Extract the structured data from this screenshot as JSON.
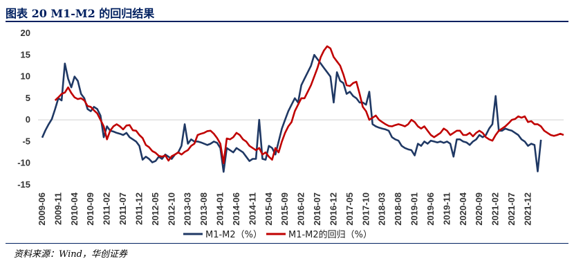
{
  "figure": {
    "title": "图表 20   M1-M2 的回归结果",
    "source": "资料来源：Wind，华创证券"
  },
  "chart_data": {
    "type": "line",
    "title": "",
    "xlabel": "",
    "ylabel": "",
    "ylim": [
      -15,
      20
    ],
    "yticks": [
      20,
      15,
      10,
      5,
      0,
      -5,
      -10,
      -15
    ],
    "grid": false,
    "legend_position": "bottom",
    "x_ticks": [
      "2009-06",
      "2009-11",
      "2010-04",
      "2010-09",
      "2011-02",
      "2011-07",
      "2011-12",
      "2012-05",
      "2012-10",
      "2013-03",
      "2013-08",
      "2014-01",
      "2014-06",
      "2014-11",
      "2015-04",
      "2015-09",
      "2016-02",
      "2016-07",
      "2016-12",
      "2017-05",
      "2017-10",
      "2018-03",
      "2018-08",
      "2019-01",
      "2019-06",
      "2019-11",
      "2020-04",
      "2020-09",
      "2021-02",
      "2021-07",
      "2021-12"
    ],
    "x_start": "2009-06",
    "series": [
      {
        "name": "M1-M2（%）",
        "color": "#1F3864",
        "start": "2009-06",
        "values": [
          -4.1,
          -2.4,
          -1.0,
          0.2,
          2.5,
          5.0,
          4.5,
          13.0,
          9.5,
          7.5,
          10.0,
          9.0,
          6.0,
          5.0,
          2.5,
          2.0,
          3.0,
          2.5,
          1.0,
          -4.0,
          -1.5,
          -2.5,
          -2.7,
          -3.0,
          -3.2,
          -3.5,
          -3.0,
          -4.0,
          -4.5,
          -5.0,
          -6.0,
          -9.2,
          -8.5,
          -9.0,
          -9.8,
          -9.5,
          -8.5,
          -9.0,
          -8.0,
          -8.5,
          -9.0,
          -8.0,
          -7.5,
          -6.0,
          -1.0,
          -5.5,
          -4.5,
          -5.0,
          -5.0,
          -5.2,
          -5.5,
          -5.8,
          -5.5,
          -5.0,
          -5.3,
          -6.5,
          -12.0,
          -6.5,
          -7.0,
          -7.5,
          -6.5,
          -7.0,
          -7.5,
          -8.5,
          -9.5,
          -9.0,
          -9.0,
          0.0,
          -9.0,
          -9.2,
          -6.0,
          -6.5,
          -8.0,
          -5.0,
          -2.0,
          0.0,
          2.0,
          3.5,
          5.0,
          4.0,
          8.0,
          9.5,
          11.0,
          12.5,
          15.0,
          14.0,
          13.0,
          12.0,
          11.0,
          10.0,
          4.0,
          11.0,
          9.0,
          8.5,
          6.0,
          6.5,
          5.5,
          5.0,
          4.0,
          4.0,
          3.5,
          6.5,
          -1.0,
          -1.5,
          -1.8,
          -2.0,
          -2.2,
          -2.5,
          -4.0,
          -4.5,
          -4.8,
          -6.0,
          -6.5,
          -6.8,
          -7.0,
          -8.2,
          -5.5,
          -6.0,
          -5.0,
          -5.5,
          -4.8,
          -5.0,
          -5.2,
          -5.0,
          -5.3,
          -5.0,
          -5.5,
          -8.5,
          -4.5,
          -4.5,
          -5.0,
          -5.2,
          -5.8,
          -5.0,
          -4.5,
          -3.5,
          -4.0,
          -3.5,
          -2.0,
          -1.0,
          5.5,
          -2.5,
          -2.5,
          -2.0,
          -2.3,
          -2.5,
          -3.0,
          -3.5,
          -4.5,
          -5.0,
          -6.0,
          -5.5,
          -5.8,
          -11.9,
          -4.6
        ]
      },
      {
        "name": "M1-M2的回归（%）",
        "color": "#C00000",
        "start": "2009-10",
        "values": [
          4.5,
          5.2,
          6.0,
          6.3,
          7.5,
          6.2,
          5.2,
          4.8,
          5.0,
          4.5,
          3.2,
          3.0,
          2.2,
          1.5,
          0.0,
          -1.5,
          -4.5,
          -2.5,
          -1.5,
          -1.0,
          -1.5,
          -2.2,
          -1.3,
          -1.2,
          -2.4,
          -2.5,
          -3.5,
          -4.2,
          -5.8,
          -6.3,
          -7.2,
          -7.6,
          -8.3,
          -8.5,
          -8.2,
          -9.4,
          -8.4,
          -8.0,
          -7.5,
          -8.0,
          -7.4,
          -7.0,
          -6.0,
          -5.5,
          -3.5,
          -3.2,
          -3.0,
          -2.6,
          -2.5,
          -3.2,
          -4.2,
          -5.5,
          -10.0,
          -4.3,
          -4.5,
          -4.0,
          -3.0,
          -3.5,
          -4.5,
          -5.0,
          -6.0,
          -6.5,
          -7.0,
          -6.5,
          -8.0,
          -7.5,
          -8.5,
          -9.2,
          -6.5,
          -7.5,
          -5.0,
          -3.0,
          -1.5,
          -0.5,
          2.0,
          3.5,
          5.0,
          5.0,
          6.5,
          8.0,
          10.0,
          12.0,
          14.5,
          16.0,
          17.0,
          16.5,
          14.5,
          13.5,
          12.5,
          10.5,
          8.0,
          7.8,
          8.5,
          8.8,
          6.0,
          3.0,
          2.0,
          0.0,
          0.5,
          1.0,
          0.0,
          -0.5,
          -1.0,
          -1.4,
          -1.5,
          -1.2,
          -1.0,
          -1.2,
          -1.5,
          -1.0,
          0.0,
          -0.5,
          -1.5,
          -2.0,
          -1.5,
          -2.5,
          -3.5,
          -4.0,
          -3.5,
          -3.0,
          -2.0,
          -2.5,
          -3.5,
          -3.0,
          -2.5,
          -2.5,
          -3.5,
          -3.5,
          -3.0,
          -3.8,
          -3.0,
          -2.5,
          -3.0,
          -4.0,
          -4.5,
          -4.8,
          -3.5,
          -2.5,
          -2.0,
          -1.5,
          -0.8,
          0.0,
          0.2,
          0.8,
          0.5,
          0.8,
          -0.5,
          -0.3,
          -1.0,
          -1.0,
          -1.5,
          -2.5,
          -3.0,
          -3.5,
          -3.7,
          -3.5,
          -3.2,
          -3.5
        ]
      }
    ]
  }
}
